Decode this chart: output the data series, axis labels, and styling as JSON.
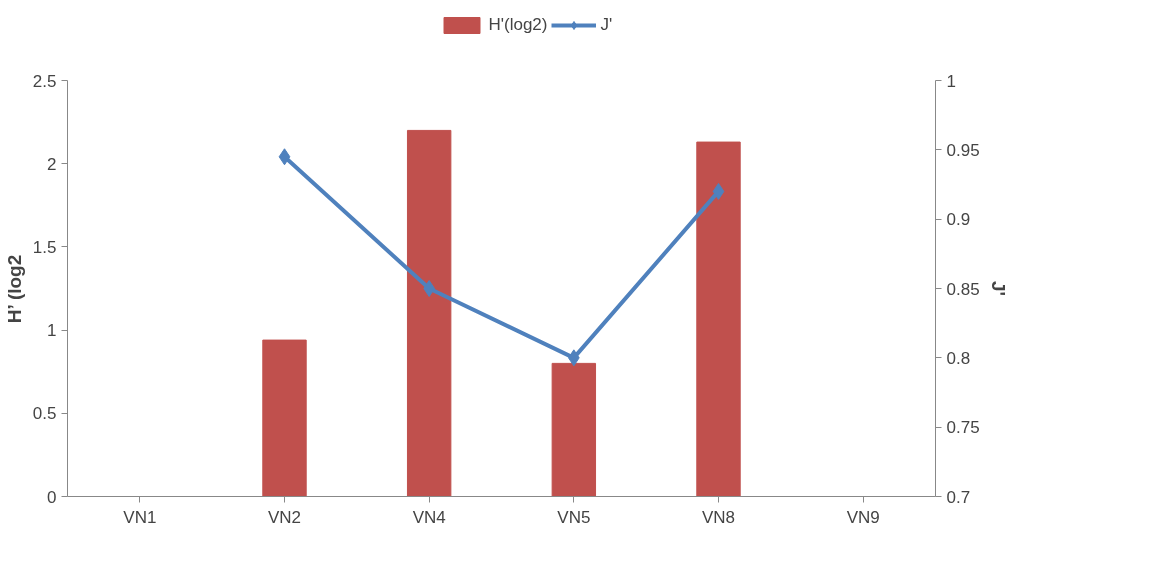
{
  "chart_data": {
    "type": "bar",
    "categories": [
      "VN1",
      "VN2",
      "VN4",
      "VN5",
      "VN8",
      "VN9"
    ],
    "series": [
      {
        "name": "H'(log2)",
        "color": "#c0504d",
        "values": [
          null,
          0.94,
          2.2,
          0.8,
          2.13,
          null
        ]
      },
      {
        "name": "J'",
        "type": "line",
        "axis": "y2",
        "color": "#4f81bd",
        "marker": "diamond",
        "values": [
          null,
          0.945,
          0.85,
          0.8,
          0.92,
          null
        ]
      }
    ],
    "ylabel": "H’ (log2",
    "y2label": "J'",
    "ylim": [
      0,
      2.5
    ],
    "yticks": [
      0,
      0.5,
      1,
      1.5,
      2,
      2.5
    ],
    "y2lim": [
      0.7,
      1
    ],
    "y2ticks": [
      0.7,
      0.75,
      0.8,
      0.85,
      0.9,
      0.95,
      1
    ],
    "legend": "top",
    "grid": false
  }
}
